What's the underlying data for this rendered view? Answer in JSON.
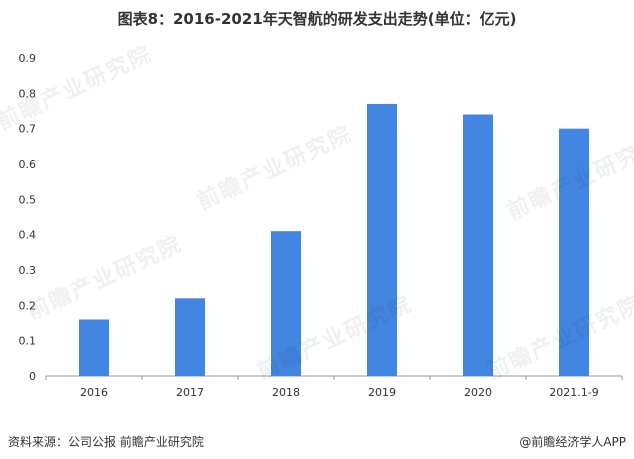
{
  "title": "图表8：2016-2021年天智航的研发支出走势(单位：亿元)",
  "footer": {
    "source": "资料来源：公司公报 前瞻产业研究院",
    "brand": "@前瞻经济学人APP"
  },
  "watermark_text": "前瞻产业研究院",
  "colors": {
    "bar": "#4286E1",
    "axis": "#999999",
    "text": "#333333"
  },
  "chart_data": {
    "type": "bar",
    "title": "图表8：2016-2021年天智航的研发支出走势(单位：亿元)",
    "categories": [
      "2016",
      "2017",
      "2018",
      "2019",
      "2020",
      "2021.1-9"
    ],
    "values": [
      0.16,
      0.22,
      0.41,
      0.77,
      0.74,
      0.7
    ],
    "ylim": [
      0,
      0.9
    ],
    "yticks": [
      "0",
      "0.1",
      "0.2",
      "0.3",
      "0.4",
      "0.5",
      "0.6",
      "0.7",
      "0.8",
      "0.9"
    ],
    "xlabel": "",
    "ylabel": "",
    "grid": false,
    "legend": "none"
  }
}
